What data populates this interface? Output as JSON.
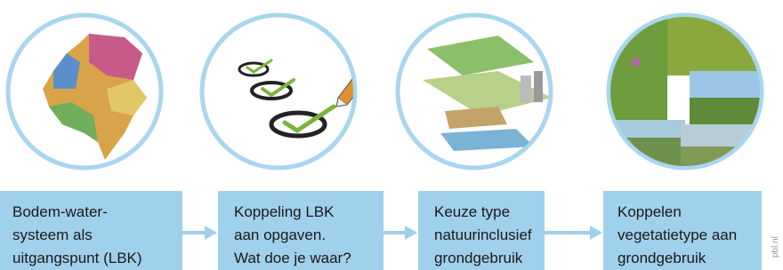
{
  "steps": [
    {
      "lines": [
        "Bodem-water-",
        "systeem als",
        "uitgangspunt (LBK)"
      ]
    },
    {
      "lines": [
        "Koppeling LBK",
        "aan opgaven.",
        "Wat doe je waar?"
      ]
    },
    {
      "lines": [
        "Keuze type",
        "natuurinclusief",
        "grondgebruik"
      ]
    },
    {
      "lines": [
        "Koppelen",
        "vegetatietype aan",
        "grondgebruik"
      ]
    }
  ],
  "credit": "pbl.nl"
}
